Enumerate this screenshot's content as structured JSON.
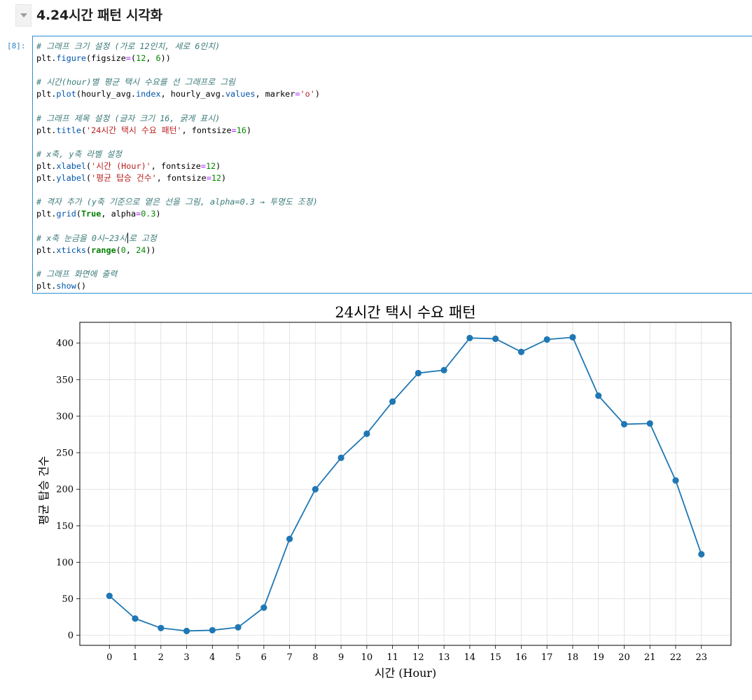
{
  "heading": {
    "title": "4.24시간 패턴 시각화",
    "collapse_icon": "chevron-down-icon"
  },
  "cell": {
    "prompt": "[8]:",
    "code_lines": [
      "# 그래프 크기 설정 (가로 12인치, 세로 6인치)",
      "plt.figure(figsize=(12, 6))",
      "",
      "# 시간(hour)별 평균 택시 수요를 선 그래프로 그림",
      "plt.plot(hourly_avg.index, hourly_avg.values, marker='o')",
      "",
      "# 그래프 제목 설정 (글자 크기 16, 굵게 표시)",
      "plt.title('24시간 택시 수요 패턴', fontsize=16)",
      "",
      "# x축, y축 라벨 설정",
      "plt.xlabel('시간 (Hour)', fontsize=12)",
      "plt.ylabel('평균 탑승 건수', fontsize=12)",
      "",
      "# 격자 추가 (y축 기준으로 옅은 선을 그림, alpha=0.3 → 투명도 조정)",
      "plt.grid(True, alpha=0.3)",
      "",
      "# x축 눈금을 0시~23시로 고정",
      "plt.xticks(range(0, 24))",
      "",
      "# 그래프 화면에 출력",
      "plt.show()"
    ]
  },
  "chart_data": {
    "type": "line",
    "title": "24시간 택시 수요 패턴",
    "xlabel": "시간 (Hour)",
    "ylabel": "평균 탑승 건수",
    "x": [
      0,
      1,
      2,
      3,
      4,
      5,
      6,
      7,
      8,
      9,
      10,
      11,
      12,
      13,
      14,
      15,
      16,
      17,
      18,
      19,
      20,
      21,
      22,
      23
    ],
    "series": [
      {
        "values": [
          54,
          23,
          10,
          6,
          7,
          11,
          38,
          132,
          200,
          243,
          276,
          320,
          359,
          363,
          407,
          406,
          388,
          405,
          408,
          328,
          289,
          290,
          212,
          111
        ],
        "color": "#1f77b4",
        "marker": "o"
      }
    ],
    "xticks": [
      0,
      1,
      2,
      3,
      4,
      5,
      6,
      7,
      8,
      9,
      10,
      11,
      12,
      13,
      14,
      15,
      16,
      17,
      18,
      19,
      20,
      21,
      22,
      23
    ],
    "yticks": [
      0,
      50,
      100,
      150,
      200,
      250,
      300,
      350,
      400
    ],
    "xlim": [
      -1.15,
      24.15
    ],
    "ylim": [
      -13.7,
      428.5
    ],
    "grid": true
  }
}
